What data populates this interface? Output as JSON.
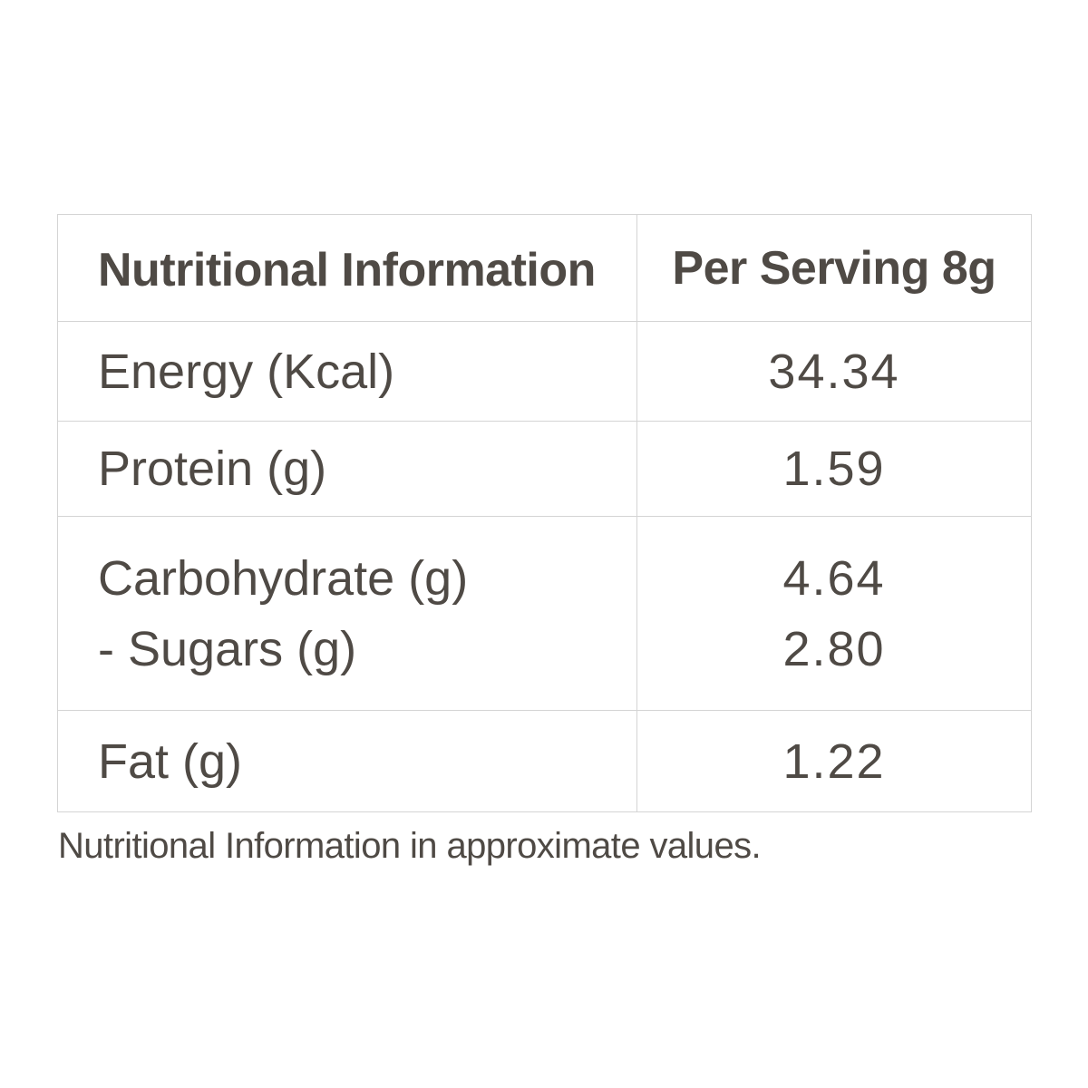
{
  "table": {
    "header": {
      "label": "Nutritional Information",
      "value": "Per Serving 8g"
    },
    "rows": [
      {
        "label": "Energy (Kcal)",
        "value": "34.34"
      },
      {
        "label": "Protein (g)",
        "value": "1.59"
      },
      {
        "label": "Carbohydrate (g)",
        "value": "4.64",
        "sub_label": "- Sugars (g)",
        "sub_value": "2.80"
      },
      {
        "label": "Fat (g)",
        "value": "1.22"
      }
    ]
  },
  "footnote": "Nutritional Information in approximate values.",
  "colors": {
    "text": "#4f4a45",
    "border": "#d4d4d4",
    "background": "#ffffff"
  }
}
